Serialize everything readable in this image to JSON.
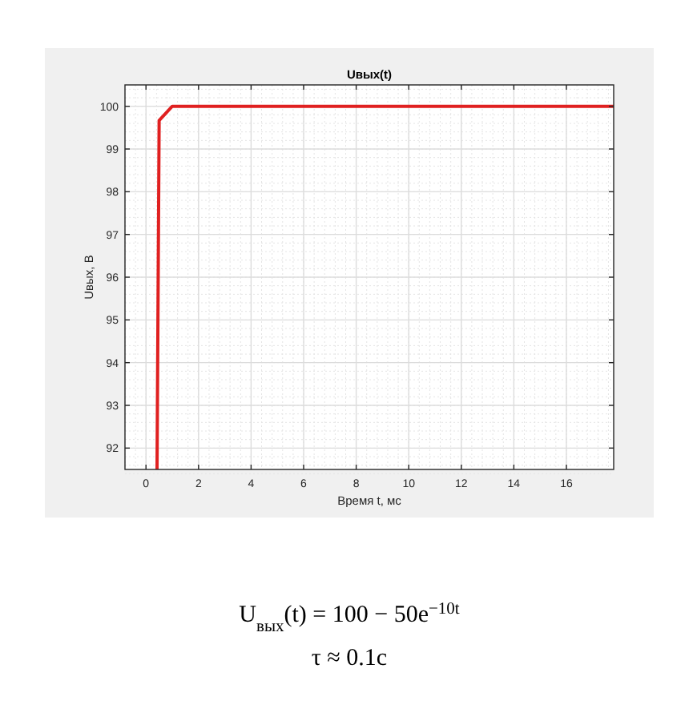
{
  "chart_data": {
    "type": "line",
    "title": "Uвых(t)",
    "xlabel": "Время t, мс",
    "ylabel": "Uвых, В",
    "x": [
      0.42,
      0.5,
      1,
      17.8
    ],
    "series": [
      {
        "color": "#e02020",
        "values": [
          91.5,
          99.67,
          100,
          100
        ]
      }
    ],
    "xlim": [
      -0.8,
      17.8
    ],
    "xticks": [
      0,
      2,
      4,
      6,
      8,
      10,
      12,
      14,
      16
    ],
    "ylim": [
      91.5,
      100.5
    ],
    "yticks": [
      92,
      93,
      94,
      95,
      96,
      97,
      98,
      99,
      100
    ],
    "grid": true,
    "marker": "none",
    "line_style": "solid",
    "annotations": [
      "U$_{вых}$(t) = 100 − 50e$^{−10t}$",
      "τ ≈ 0.1c"
    ]
  }
}
